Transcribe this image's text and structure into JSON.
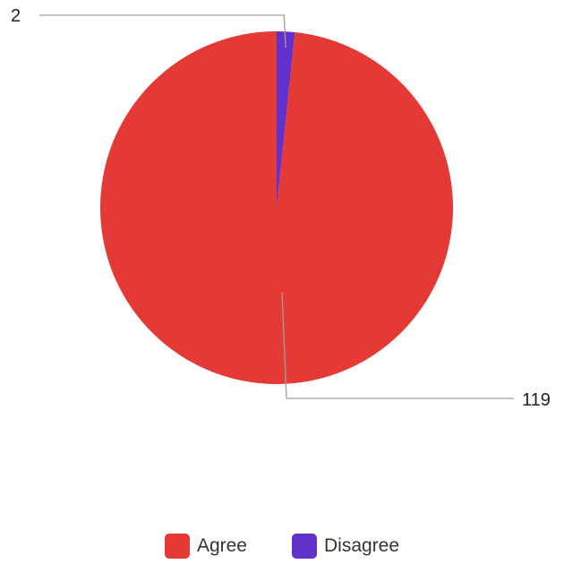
{
  "chart_data": {
    "type": "pie",
    "categories": [
      "Agree",
      "Disagree"
    ],
    "values": [
      119,
      2
    ],
    "colors": [
      "#e53935",
      "#6131c9"
    ],
    "data_labels": [
      "119",
      "2"
    ],
    "title": "",
    "legend_position": "bottom"
  }
}
